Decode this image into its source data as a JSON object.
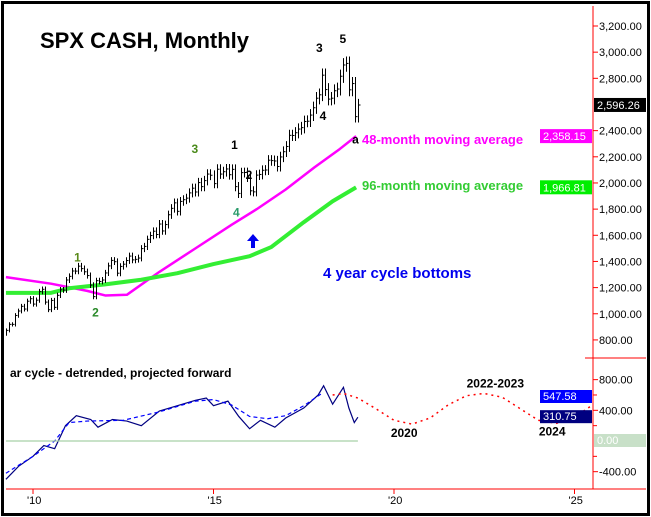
{
  "chart_data": [
    {
      "type": "bar",
      "subtype": "ohlc-monthly",
      "title": "SPX CASH, Monthly",
      "yaxis_side": "right",
      "ylim": [
        700,
        3300
      ],
      "yticks": [
        "3,200.00",
        "3,000.00",
        "2,800.00",
        "2,400.00",
        "2,200.00",
        "2,000.00",
        "1,800.00",
        "1,600.00",
        "1,400.00",
        "1,200.00",
        "1,000.00",
        "800.00"
      ],
      "ytick_values": [
        3200,
        3000,
        2800,
        2400,
        2200,
        2000,
        1800,
        1600,
        1400,
        1200,
        1000,
        800
      ],
      "x_start": 2009.25,
      "closes": [
        873,
        919,
        919,
        987,
        1021,
        1057,
        1036,
        1096,
        1115,
        1074,
        1104,
        1169,
        1187,
        1089,
        1031,
        1102,
        1049,
        1141,
        1183,
        1181,
        1258,
        1286,
        1327,
        1326,
        1364,
        1345,
        1321,
        1292,
        1219,
        1131,
        1253,
        1247,
        1258,
        1312,
        1366,
        1408,
        1398,
        1310,
        1362,
        1379,
        1407,
        1441,
        1412,
        1416,
        1426,
        1498,
        1515,
        1569,
        1598,
        1631,
        1606,
        1686,
        1633,
        1682,
        1757,
        1806,
        1848,
        1783,
        1859,
        1872,
        1884,
        1924,
        1960,
        1931,
        2003,
        1972,
        2018,
        2068,
        2059,
        1995,
        2105,
        2068,
        2086,
        2107,
        2063,
        2104,
        1972,
        1920,
        2079,
        2080,
        2044,
        1940,
        1932,
        2060,
        2065,
        2097,
        2099,
        2174,
        2171,
        2168,
        2126,
        2199,
        2239,
        2279,
        2364,
        2363,
        2384,
        2412,
        2423,
        2470,
        2472,
        2519,
        2575,
        2648,
        2674,
        2824,
        2714,
        2641,
        2648,
        2705,
        2718,
        2816,
        2902,
        2914,
        2712,
        2760,
        2507,
        2596
      ],
      "series": [
        {
          "name": "48-month moving average",
          "color": "#ff00ff",
          "last_value": "2,358.15",
          "x": [
            2009.25,
            2010.5,
            2011.5,
            2012.0,
            2012.6,
            2013.5,
            2014.5,
            2015.5,
            2016.2,
            2017.0,
            2017.8,
            2018.5,
            2018.95
          ],
          "y": [
            1280,
            1230,
            1175,
            1140,
            1145,
            1320,
            1500,
            1680,
            1800,
            1950,
            2120,
            2260,
            2358
          ]
        },
        {
          "name": "96-month moving average",
          "color": "#33ee33",
          "last_value": "1,966.81",
          "x": [
            2009.25,
            2010.5,
            2011.0,
            2012.0,
            2013.0,
            2014.0,
            2015.0,
            2016.0,
            2016.6,
            2017.5,
            2018.3,
            2018.95
          ],
          "y": [
            1160,
            1160,
            1195,
            1225,
            1260,
            1310,
            1380,
            1440,
            1510,
            1700,
            1860,
            1966
          ]
        }
      ],
      "last_price": "2,596.26",
      "last_price_value": 2596.26,
      "annotations": [
        {
          "text": "1",
          "x": 2011.25,
          "y": 1400,
          "color": "#5a8a1a"
        },
        {
          "text": "2",
          "x": 2011.75,
          "y": 980,
          "color": "#2a8a2a"
        },
        {
          "text": "3",
          "x": 2014.5,
          "y": 2230,
          "color": "#4a8a1a"
        },
        {
          "text": "1",
          "x": 2015.6,
          "y": 2260,
          "color": "#000000"
        },
        {
          "text": "2",
          "x": 2016.0,
          "y": 2030,
          "color": "#000000"
        },
        {
          "text": "4",
          "x": 2015.65,
          "y": 1745,
          "color": "#2a9a6a"
        },
        {
          "text": "3",
          "x": 2017.95,
          "y": 3000,
          "color": "#000000"
        },
        {
          "text": "5",
          "x": 2018.6,
          "y": 3070,
          "color": "#000000"
        },
        {
          "text": "4",
          "x": 2018.05,
          "y": 2480,
          "color": "#000000"
        },
        {
          "text": "a",
          "x": 2018.95,
          "y": 2300,
          "color": "#000000"
        }
      ],
      "labels": {
        "ma48": "48-month moving average",
        "ma96": "96-month moving average",
        "cycle_bottoms": "4 year cycle bottoms"
      }
    },
    {
      "type": "line",
      "title": "ar cycle - detrended, projected forward",
      "ylim": [
        -500,
        900
      ],
      "yticks": [
        "800.00",
        "400.00",
        "-400.00"
      ],
      "ytick_values": [
        800,
        400,
        -400
      ],
      "series": [
        {
          "name": "detrended",
          "color": "#000080",
          "last_value": "310.75",
          "x": [
            2009.25,
            2009.6,
            2010.0,
            2010.3,
            2010.6,
            2010.9,
            2011.2,
            2011.6,
            2011.8,
            2012.2,
            2012.6,
            2013.0,
            2013.5,
            2014.0,
            2014.5,
            2014.8,
            2015.0,
            2015.4,
            2015.7,
            2016.0,
            2016.3,
            2016.7,
            2017.0,
            2017.5,
            2017.9,
            2018.05,
            2018.3,
            2018.6,
            2018.75,
            2018.9,
            2019.0
          ],
          "y": [
            -500,
            -330,
            -200,
            -60,
            -100,
            200,
            330,
            280,
            180,
            280,
            260,
            200,
            390,
            460,
            530,
            560,
            460,
            520,
            320,
            160,
            270,
            180,
            300,
            430,
            600,
            720,
            480,
            700,
            430,
            240,
            310
          ]
        },
        {
          "name": "smoothed",
          "color": "#0000ff",
          "dashed": true,
          "x": [
            2009.25,
            2010.0,
            2010.6,
            2011.0,
            2011.5,
            2012.5,
            2013.5,
            2014.5,
            2015.0,
            2015.5,
            2016.0,
            2016.5,
            2017.0,
            2017.5,
            2018.0
          ],
          "y": [
            -420,
            -200,
            0,
            240,
            260,
            270,
            380,
            520,
            540,
            470,
            320,
            290,
            330,
            460,
            620
          ]
        },
        {
          "name": "projection",
          "color": "#ff0000",
          "dotted": true,
          "x": [
            2018.3,
            2018.6,
            2019.0,
            2019.5,
            2020.0,
            2020.5,
            2021.0,
            2021.5,
            2022.0,
            2022.5,
            2023.0,
            2023.5,
            2024.0,
            2024.5,
            2025.0,
            2025.5
          ],
          "y": [
            600,
            620,
            560,
            420,
            270,
            220,
            300,
            470,
            590,
            620,
            570,
            420,
            270,
            230,
            310,
            470
          ]
        },
        {
          "name": "zero-line",
          "color": "#a8d0a8",
          "x": [
            2009.25,
            2019.0
          ],
          "y": [
            0,
            0
          ]
        }
      ],
      "value_boxes": [
        {
          "text": "547.58",
          "value": 547.58,
          "bg": "#0000ff",
          "fg": "#ffffff"
        },
        {
          "text": "310.75",
          "value": 310.75,
          "bg": "#000080",
          "fg": "#ffffff"
        },
        {
          "text": "0.00",
          "value": 0,
          "bg": "#c8e0c8",
          "fg": "#ffffff"
        }
      ],
      "annotations": [
        {
          "text": "2022-2023",
          "x": 2022.4,
          "y": 700
        },
        {
          "text": "2020",
          "x": 2020.3,
          "y": 50
        },
        {
          "text": "2024",
          "x": 2024.4,
          "y": 70
        }
      ]
    }
  ],
  "xaxis": {
    "ticks": [
      "'10",
      "'15",
      "'20",
      "'25"
    ],
    "tick_values": [
      2010,
      2015,
      2020,
      2025
    ]
  }
}
